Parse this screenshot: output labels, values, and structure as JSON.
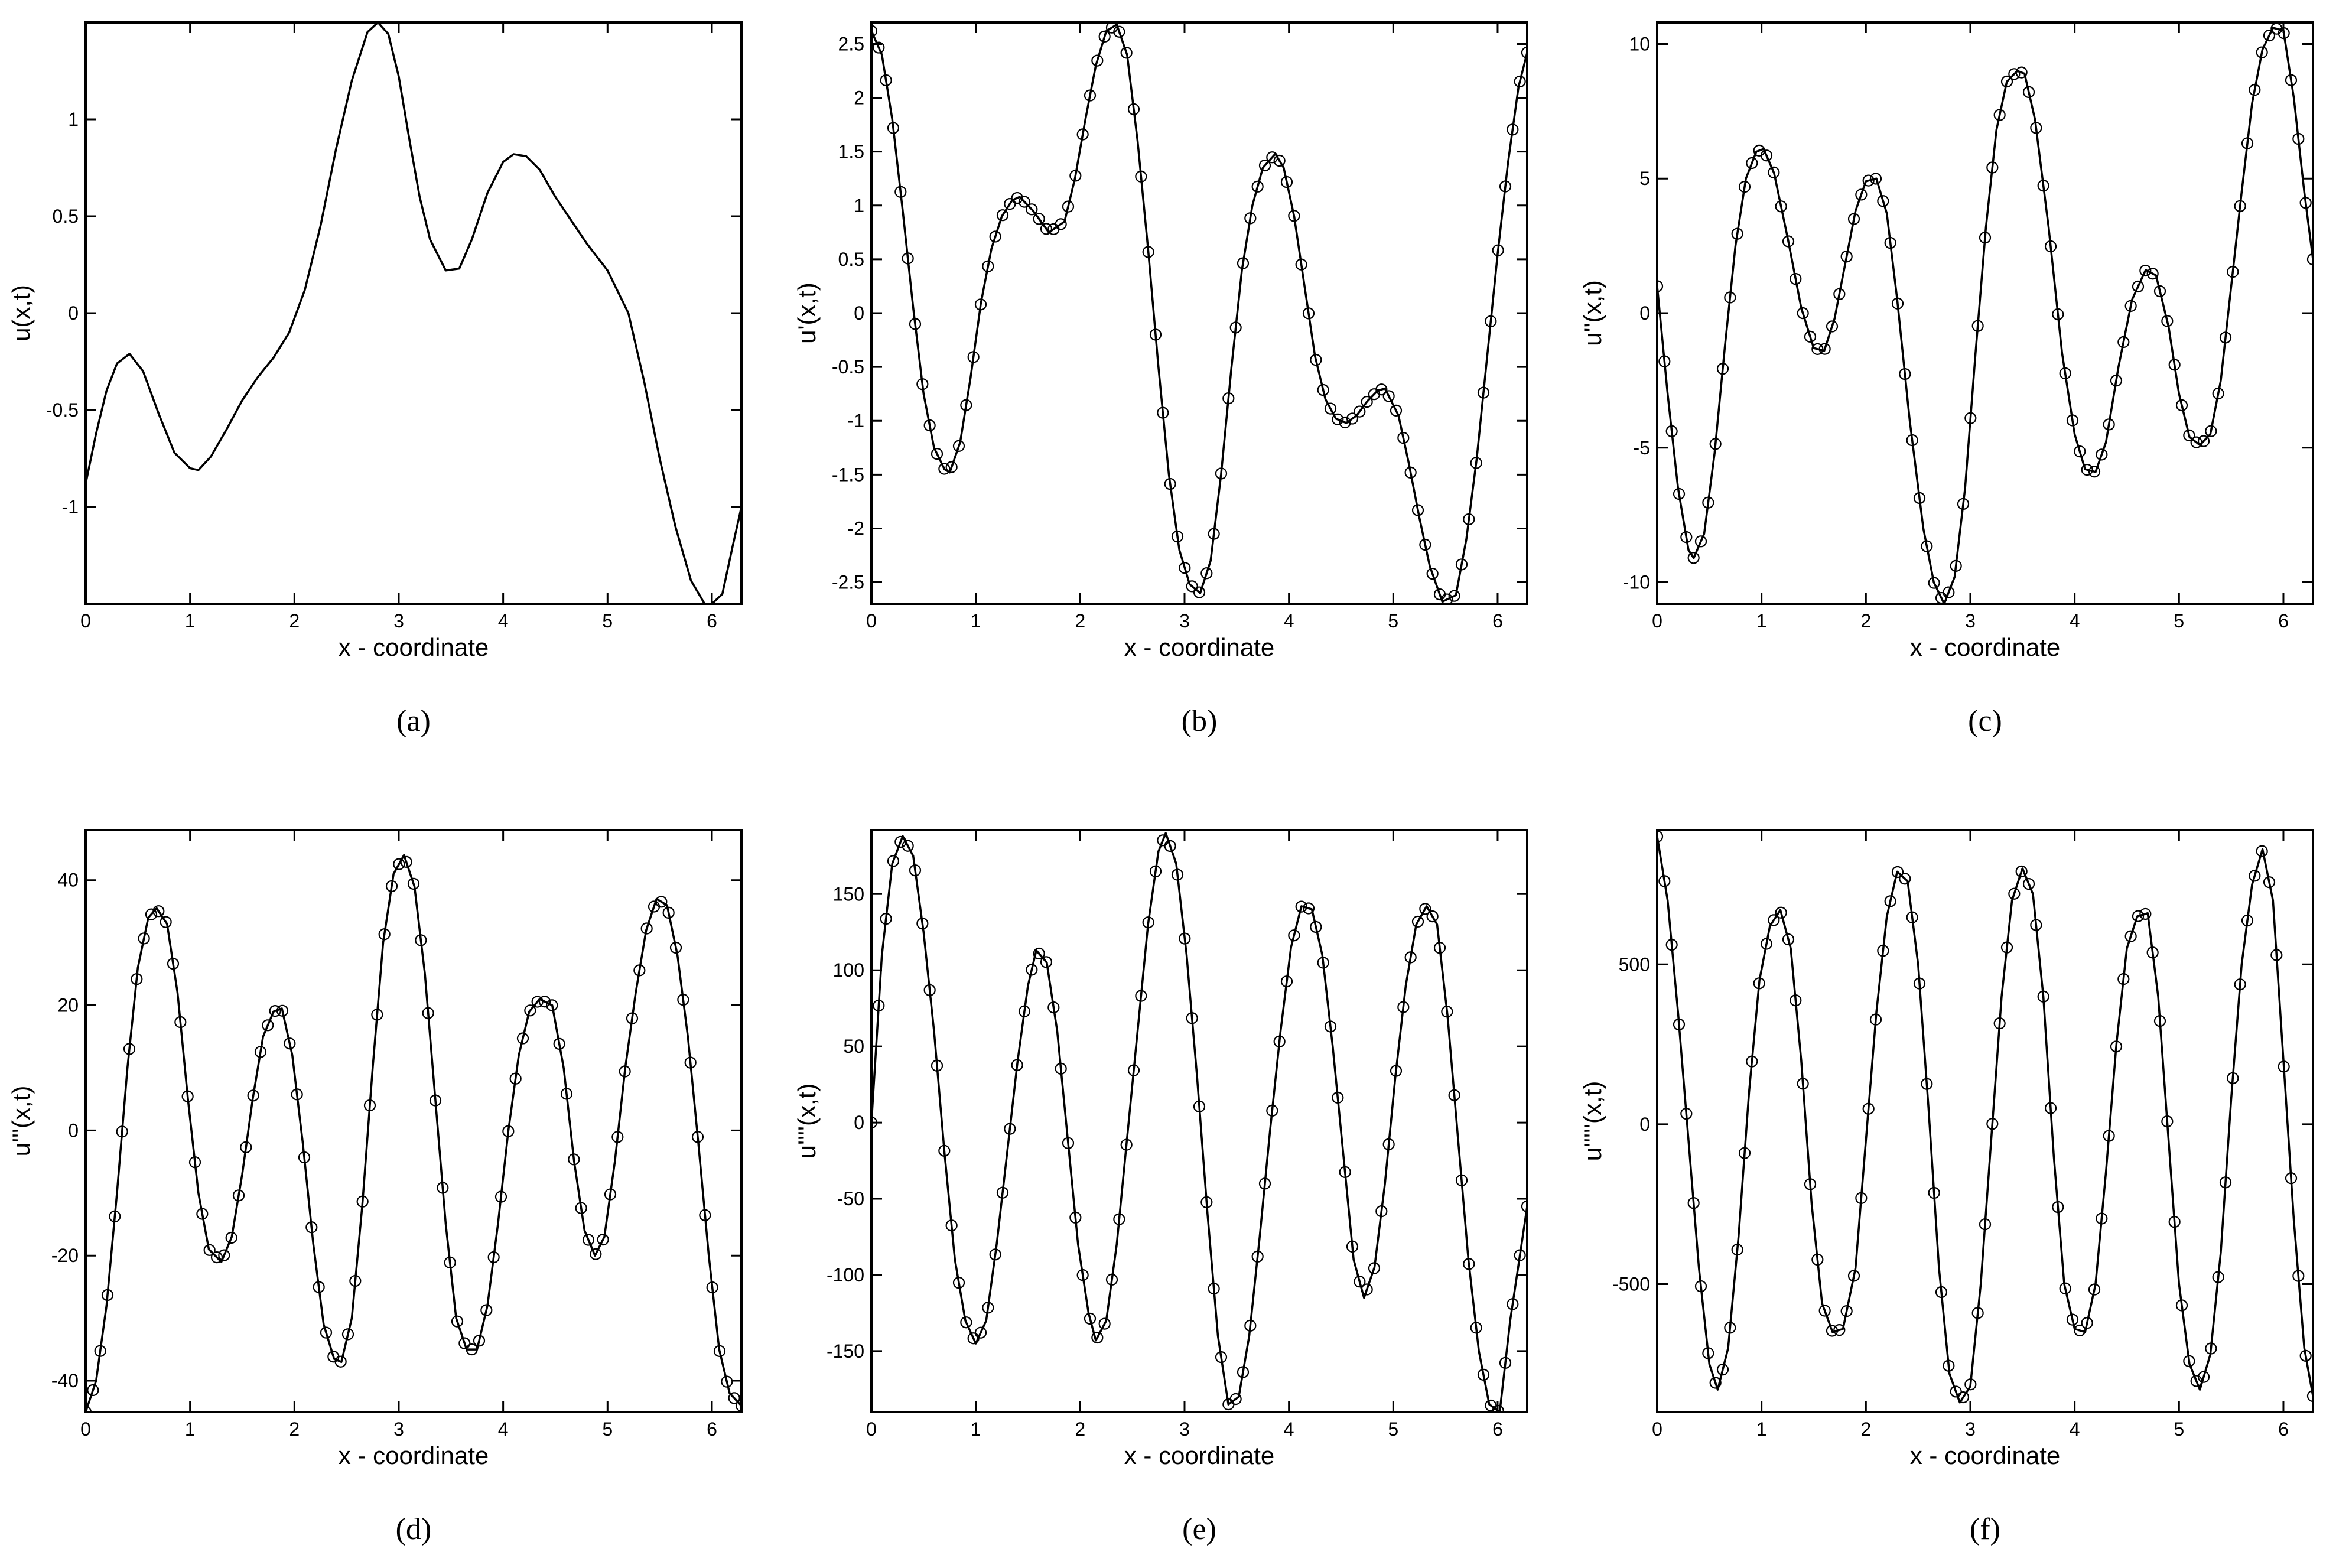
{
  "chart_data": [
    {
      "id": "a",
      "type": "line",
      "caption": "(a)",
      "xlabel": "x - coordinate",
      "ylabel": "u(x,t)",
      "xlim": [
        0,
        6.2832
      ],
      "ylim": [
        -1.5,
        1.5
      ],
      "xticks": [
        0,
        1,
        2,
        3,
        4,
        5,
        6
      ],
      "xtick_labels": [
        "0",
        "1",
        "2",
        "3",
        "4",
        "5",
        "6"
      ],
      "yticks": [
        -1,
        -0.5,
        0,
        0.5,
        1
      ],
      "ytick_labels": [
        "-1",
        "-0.5",
        "0",
        "0.5",
        "1"
      ],
      "markers": false,
      "x": [
        0,
        0.1,
        0.2,
        0.3,
        0.42,
        0.55,
        0.7,
        0.85,
        1.0,
        1.08,
        1.2,
        1.35,
        1.5,
        1.65,
        1.8,
        1.95,
        2.1,
        2.25,
        2.4,
        2.55,
        2.7,
        2.8,
        2.9,
        3.0,
        3.1,
        3.2,
        3.3,
        3.45,
        3.58,
        3.7,
        3.85,
        4.0,
        4.1,
        4.22,
        4.35,
        4.5,
        4.65,
        4.8,
        5.0,
        5.2,
        5.35,
        5.5,
        5.65,
        5.8,
        5.93,
        6.0,
        6.1,
        6.2,
        6.2832
      ],
      "y": [
        -0.88,
        -0.62,
        -0.4,
        -0.26,
        -0.21,
        -0.3,
        -0.52,
        -0.72,
        -0.8,
        -0.81,
        -0.74,
        -0.6,
        -0.45,
        -0.33,
        -0.23,
        -0.1,
        0.12,
        0.45,
        0.85,
        1.2,
        1.45,
        1.5,
        1.44,
        1.22,
        0.9,
        0.6,
        0.38,
        0.22,
        0.23,
        0.38,
        0.62,
        0.78,
        0.82,
        0.81,
        0.74,
        0.6,
        0.48,
        0.36,
        0.22,
        0.0,
        -0.35,
        -0.75,
        -1.1,
        -1.38,
        -1.5,
        -1.5,
        -1.45,
        -1.2,
        -1.0
      ]
    },
    {
      "id": "b",
      "type": "line",
      "caption": "(b)",
      "xlabel": "x - coordinate",
      "ylabel": "u'(x,t)",
      "xlim": [
        0,
        6.2832
      ],
      "ylim": [
        -2.7,
        2.7
      ],
      "xticks": [
        0,
        1,
        2,
        3,
        4,
        5,
        6
      ],
      "xtick_labels": [
        "0",
        "1",
        "2",
        "3",
        "4",
        "5",
        "6"
      ],
      "yticks": [
        -2.5,
        -2,
        -1.5,
        -1,
        -0.5,
        0,
        0.5,
        1,
        1.5,
        2,
        2.5
      ],
      "ytick_labels": [
        "-2.5",
        "-2",
        "-1.5",
        "-1",
        "-0.5",
        "0",
        "0.5",
        "1",
        "1.5",
        "2",
        "2.5"
      ],
      "markers": true,
      "x": [
        0,
        0.1,
        0.2,
        0.3,
        0.4,
        0.5,
        0.6,
        0.7,
        0.75,
        0.85,
        0.95,
        1.05,
        1.15,
        1.25,
        1.35,
        1.42,
        1.55,
        1.7,
        1.85,
        1.95,
        2.05,
        2.15,
        2.25,
        2.35,
        2.45,
        2.55,
        2.65,
        2.75,
        2.85,
        2.95,
        3.05,
        3.15,
        3.25,
        3.35,
        3.45,
        3.55,
        3.65,
        3.75,
        3.87,
        3.95,
        4.05,
        4.15,
        4.25,
        4.35,
        4.45,
        4.55,
        4.65,
        4.75,
        4.85,
        4.92,
        5.05,
        5.15,
        5.25,
        5.35,
        5.47,
        5.6,
        5.7,
        5.8,
        5.9,
        6.0,
        6.1,
        6.2,
        6.2832
      ],
      "y": [
        2.62,
        2.4,
        1.8,
        0.95,
        0.05,
        -0.75,
        -1.25,
        -1.45,
        -1.48,
        -1.2,
        -0.6,
        0.1,
        0.6,
        0.9,
        1.05,
        1.08,
        0.95,
        0.75,
        0.85,
        1.25,
        1.8,
        2.3,
        2.62,
        2.68,
        2.4,
        1.6,
        0.6,
        -0.5,
        -1.5,
        -2.2,
        -2.52,
        -2.6,
        -2.3,
        -1.5,
        -0.5,
        0.4,
        1.0,
        1.35,
        1.48,
        1.35,
        0.9,
        0.25,
        -0.4,
        -0.8,
        -0.98,
        -1.02,
        -0.95,
        -0.82,
        -0.72,
        -0.7,
        -0.95,
        -1.4,
        -1.9,
        -2.35,
        -2.68,
        -2.62,
        -2.1,
        -1.35,
        -0.4,
        0.55,
        1.4,
        2.1,
        2.42
      ]
    },
    {
      "id": "c",
      "type": "line",
      "caption": "(c)",
      "xlabel": "x - coordinate",
      "ylabel": "u''(x,t)",
      "xlim": [
        0,
        6.2832
      ],
      "ylim": [
        -10.8,
        10.8
      ],
      "xticks": [
        0,
        1,
        2,
        3,
        4,
        5,
        6
      ],
      "xtick_labels": [
        "0",
        "1",
        "2",
        "3",
        "4",
        "5",
        "6"
      ],
      "yticks": [
        -10,
        -5,
        0,
        5,
        10
      ],
      "ytick_labels": [
        "-10",
        "-5",
        "0",
        "5",
        "10"
      ],
      "markers": true,
      "x": [
        0,
        0.1,
        0.2,
        0.3,
        0.35,
        0.45,
        0.55,
        0.65,
        0.75,
        0.85,
        0.95,
        1.02,
        1.12,
        1.25,
        1.38,
        1.5,
        1.6,
        1.7,
        1.8,
        1.9,
        2.0,
        2.1,
        2.2,
        2.3,
        2.42,
        2.55,
        2.65,
        2.75,
        2.85,
        2.95,
        3.05,
        3.15,
        3.25,
        3.35,
        3.45,
        3.52,
        3.62,
        3.75,
        3.88,
        4.0,
        4.1,
        4.2,
        4.3,
        4.42,
        4.55,
        4.68,
        4.78,
        4.9,
        5.0,
        5.1,
        5.2,
        5.3,
        5.4,
        5.5,
        5.6,
        5.7,
        5.8,
        5.9,
        6.0,
        6.1,
        6.2,
        6.2832
      ],
      "y": [
        1.0,
        -3.0,
        -6.5,
        -8.8,
        -9.1,
        -8.2,
        -5.2,
        -1.2,
        2.5,
        5.0,
        6.0,
        6.1,
        5.2,
        2.8,
        0.2,
        -1.3,
        -1.4,
        -0.2,
        1.8,
        3.8,
        4.9,
        5.0,
        3.7,
        0.5,
        -4.0,
        -8.0,
        -10.0,
        -10.8,
        -9.8,
        -6.5,
        -1.5,
        3.2,
        6.8,
        8.6,
        9.0,
        8.9,
        7.2,
        3.2,
        -1.5,
        -4.5,
        -5.8,
        -5.9,
        -4.8,
        -2.0,
        0.5,
        1.6,
        1.4,
        -0.5,
        -3.0,
        -4.6,
        -4.9,
        -4.5,
        -2.5,
        1.0,
        4.5,
        7.8,
        9.8,
        10.6,
        10.5,
        8.0,
        4.5,
        2.0
      ]
    },
    {
      "id": "d",
      "type": "line",
      "caption": "(d)",
      "xlabel": "x - coordinate",
      "ylabel": "u'''(x,t)",
      "xlim": [
        0,
        6.2832
      ],
      "ylim": [
        -45,
        48
      ],
      "xticks": [
        0,
        1,
        2,
        3,
        4,
        5,
        6
      ],
      "xtick_labels": [
        "0",
        "1",
        "2",
        "3",
        "4",
        "5",
        "6"
      ],
      "yticks": [
        -40,
        -20,
        0,
        20,
        40
      ],
      "ytick_labels": [
        "-40",
        "-20",
        "0",
        "20",
        "40"
      ],
      "markers": true,
      "x": [
        0,
        0.1,
        0.2,
        0.3,
        0.4,
        0.5,
        0.6,
        0.68,
        0.78,
        0.88,
        0.98,
        1.08,
        1.18,
        1.3,
        1.4,
        1.5,
        1.6,
        1.7,
        1.8,
        1.88,
        1.98,
        2.08,
        2.18,
        2.28,
        2.38,
        2.45,
        2.55,
        2.65,
        2.75,
        2.85,
        2.95,
        3.05,
        3.15,
        3.25,
        3.35,
        3.45,
        3.55,
        3.65,
        3.75,
        3.85,
        3.95,
        4.05,
        4.15,
        4.25,
        4.35,
        4.47,
        4.58,
        4.68,
        4.78,
        4.88,
        4.97,
        5.07,
        5.17,
        5.27,
        5.37,
        5.47,
        5.57,
        5.67,
        5.77,
        5.87,
        5.97,
        6.07,
        6.17,
        6.2832
      ],
      "y": [
        -45,
        -40,
        -28,
        -10,
        10,
        26,
        34,
        35.5,
        33,
        22,
        5,
        -10,
        -19,
        -21,
        -17,
        -7,
        5,
        15,
        19,
        19.5,
        12,
        -2,
        -18,
        -31,
        -36.5,
        -37,
        -30,
        -12,
        10,
        30,
        41,
        44,
        39,
        25,
        5,
        -15,
        -30,
        -35,
        -35,
        -28,
        -15,
        0,
        12,
        19,
        21,
        20,
        10,
        -5,
        -16,
        -20,
        -17,
        -5,
        10,
        22,
        32,
        37,
        36,
        28,
        15,
        -2,
        -20,
        -35,
        -42,
        -44
      ]
    },
    {
      "id": "e",
      "type": "line",
      "caption": "(e)",
      "xlabel": "x - coordinate",
      "ylabel": "u''''(x,t)",
      "xlim": [
        0,
        6.2832
      ],
      "ylim": [
        -190,
        192
      ],
      "xticks": [
        0,
        1,
        2,
        3,
        4,
        5,
        6
      ],
      "xtick_labels": [
        "0",
        "1",
        "2",
        "3",
        "4",
        "5",
        "6"
      ],
      "yticks": [
        -150,
        -100,
        -50,
        0,
        50,
        100,
        150
      ],
      "ytick_labels": [
        "-150",
        "-100",
        "-50",
        "0",
        "50",
        "100",
        "150"
      ],
      "markers": true,
      "x": [
        0,
        0.1,
        0.2,
        0.3,
        0.4,
        0.5,
        0.6,
        0.7,
        0.8,
        0.9,
        1.0,
        1.1,
        1.2,
        1.3,
        1.4,
        1.5,
        1.58,
        1.68,
        1.78,
        1.88,
        1.98,
        2.08,
        2.15,
        2.25,
        2.35,
        2.45,
        2.55,
        2.65,
        2.75,
        2.82,
        2.92,
        3.02,
        3.12,
        3.22,
        3.32,
        3.42,
        3.52,
        3.62,
        3.72,
        3.82,
        3.92,
        4.02,
        4.12,
        4.22,
        4.32,
        4.42,
        4.52,
        4.62,
        4.72,
        4.82,
        4.92,
        5.02,
        5.12,
        5.22,
        5.32,
        5.42,
        5.52,
        5.62,
        5.72,
        5.82,
        5.92,
        6.02,
        6.12,
        6.2832
      ],
      "y": [
        0,
        110,
        170,
        188,
        175,
        125,
        60,
        -20,
        -90,
        -130,
        -145,
        -130,
        -80,
        -20,
        40,
        90,
        113,
        105,
        60,
        -10,
        -80,
        -125,
        -143,
        -130,
        -80,
        -10,
        60,
        130,
        178,
        190,
        170,
        110,
        30,
        -60,
        -140,
        -185,
        -180,
        -140,
        -75,
        -5,
        60,
        115,
        142,
        140,
        110,
        50,
        -20,
        -90,
        -115,
        -95,
        -40,
        30,
        90,
        130,
        142,
        130,
        70,
        -10,
        -90,
        -150,
        -185,
        -190,
        -130,
        -55
      ]
    },
    {
      "id": "f",
      "type": "line",
      "caption": "(f)",
      "xlabel": "x - coordinate",
      "ylabel": "u'''''(x,t)",
      "xlim": [
        0,
        6.2832
      ],
      "ylim": [
        -900,
        920
      ],
      "xticks": [
        0,
        1,
        2,
        3,
        4,
        5,
        6
      ],
      "xtick_labels": [
        "0",
        "1",
        "2",
        "3",
        "4",
        "5",
        "6"
      ],
      "yticks": [
        -500,
        0,
        500
      ],
      "ytick_labels": [
        "-500",
        "0",
        "500"
      ],
      "markers": true,
      "x": [
        0,
        0.1,
        0.2,
        0.3,
        0.4,
        0.5,
        0.58,
        0.68,
        0.78,
        0.88,
        0.98,
        1.08,
        1.18,
        1.28,
        1.38,
        1.48,
        1.58,
        1.68,
        1.78,
        1.9,
        2.0,
        2.1,
        2.2,
        2.3,
        2.4,
        2.5,
        2.6,
        2.7,
        2.8,
        2.9,
        3.0,
        3.1,
        3.2,
        3.3,
        3.4,
        3.5,
        3.6,
        3.7,
        3.8,
        3.9,
        4.0,
        4.1,
        4.2,
        4.3,
        4.4,
        4.5,
        4.6,
        4.7,
        4.8,
        4.9,
        5.0,
        5.1,
        5.2,
        5.3,
        5.4,
        5.5,
        5.6,
        5.7,
        5.8,
        5.9,
        6.0,
        6.1,
        6.2,
        6.2832
      ],
      "y": [
        900,
        700,
        350,
        -50,
        -450,
        -750,
        -830,
        -700,
        -350,
        100,
        450,
        620,
        670,
        550,
        200,
        -250,
        -560,
        -650,
        -640,
        -450,
        -50,
        350,
        650,
        790,
        760,
        500,
        50,
        -450,
        -780,
        -870,
        -820,
        -500,
        -50,
        400,
        700,
        800,
        720,
        400,
        -100,
        -500,
        -640,
        -650,
        -500,
        -150,
        250,
        550,
        650,
        660,
        400,
        -50,
        -500,
        -750,
        -830,
        -720,
        -400,
        80,
        500,
        750,
        860,
        700,
        200,
        -300,
        -700,
        -850
      ]
    }
  ]
}
